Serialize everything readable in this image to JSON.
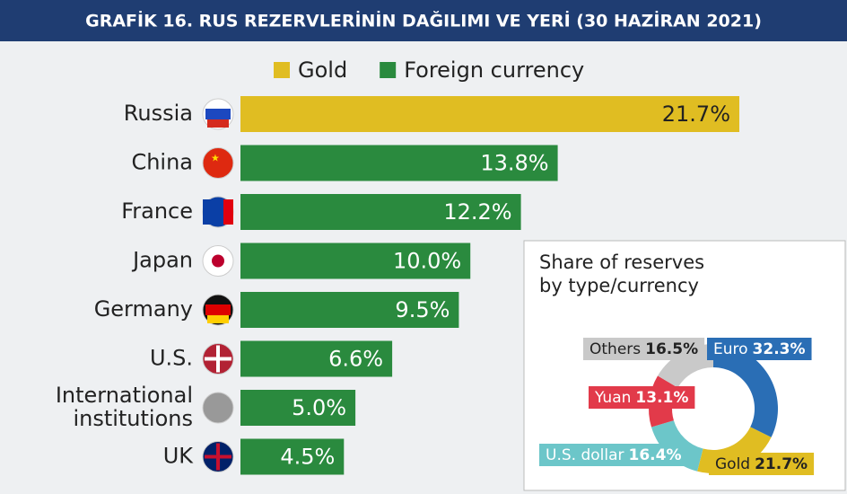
{
  "header": {
    "title": "GRAFİK 16. RUS REZERVLERİNİN DAĞILIMI VE YERİ (30 HAZİRAN 2021)"
  },
  "chart_data": [
    {
      "type": "hbar",
      "legend": [
        {
          "name": "Gold",
          "color": "#e0bd22"
        },
        {
          "name": "Foreign currency",
          "color": "#2a8a3e"
        }
      ],
      "categories": [
        "Russia",
        "China",
        "France",
        "Japan",
        "Germany",
        "U.S.",
        "International institutions",
        "UK"
      ],
      "values": [
        21.7,
        13.8,
        12.2,
        10.0,
        9.5,
        6.6,
        5.0,
        4.5
      ],
      "value_labels": [
        "21.7%",
        "13.8%",
        "12.2%",
        "10.0%",
        "9.5%",
        "6.6%",
        "5.0%",
        "4.5%"
      ],
      "colors": [
        "#e0bd22",
        "#2a8a3e",
        "#2a8a3e",
        "#2a8a3e",
        "#2a8a3e",
        "#2a8a3e",
        "#2a8a3e",
        "#2a8a3e"
      ]
    },
    {
      "type": "donut",
      "title": "Share of reserves by type/currency",
      "categories": [
        "Euro",
        "Gold",
        "U.S. dollar",
        "Yuan",
        "Others"
      ],
      "values": [
        32.3,
        21.7,
        16.4,
        13.1,
        16.5
      ],
      "value_labels": [
        "32.3%",
        "21.7%",
        "16.4%",
        "13.1%",
        "16.5%"
      ],
      "colors": [
        "#2a6eb5",
        "#e0bd22",
        "#6cc6c9",
        "#e23a4a",
        "#c9c9c9"
      ]
    }
  ]
}
